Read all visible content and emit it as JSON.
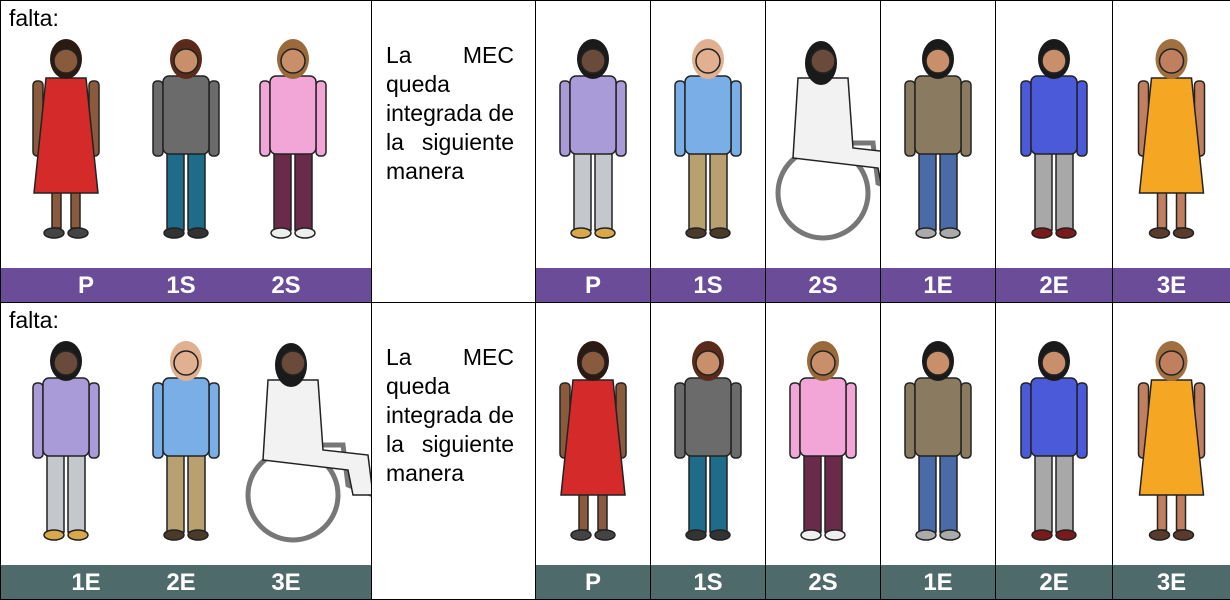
{
  "rows": [
    {
      "missing_label": "falta:",
      "missing": [
        "P",
        "1S",
        "2S"
      ],
      "text": "La MEC queda integrada de la siguiente manera",
      "members": [
        "P",
        "1S",
        "2S",
        "1E",
        "2E",
        "3E"
      ]
    },
    {
      "missing_label": "falta:",
      "missing": [
        "1E",
        "2E",
        "3E"
      ],
      "text": "La MEC queda integrada de la siguiente manera",
      "members": [
        "P",
        "1S",
        "2S",
        "1E",
        "2E",
        "3E"
      ]
    }
  ]
}
